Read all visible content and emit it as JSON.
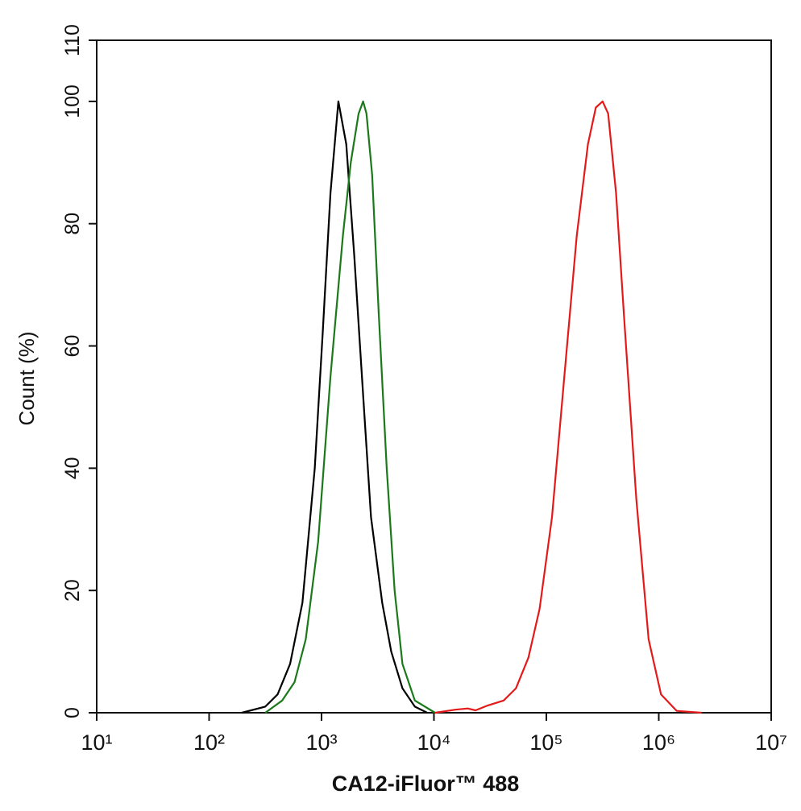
{
  "chart_data": {
    "type": "line",
    "x_label": "CA12-iFluor™ 488",
    "y_label": "Count  (%)",
    "xscale": "log",
    "xlim": [
      10,
      10000000
    ],
    "xticks": [
      {
        "value": 10,
        "label": "10¹"
      },
      {
        "value": 100,
        "label": "10²"
      },
      {
        "value": 1000,
        "label": "10³"
      },
      {
        "value": 10000,
        "label": "10⁴"
      },
      {
        "value": 100000,
        "label": "10⁵"
      },
      {
        "value": 1000000,
        "label": "10⁶"
      },
      {
        "value": 10000000,
        "label": "10⁷"
      }
    ],
    "ylim": [
      0,
      110
    ],
    "yticks": [
      0,
      20,
      40,
      60,
      80,
      100,
      110
    ],
    "series": [
      {
        "color": "#000000",
        "x": [
          195,
          316,
          407,
          525,
          676,
          871,
          1023,
          1202,
          1413,
          1660,
          1950,
          2344,
          2754,
          3467,
          4169,
          5248,
          6761,
          8710
        ],
        "values": [
          0,
          1,
          3,
          8,
          18,
          40,
          62,
          85,
          100,
          93,
          75,
          52,
          32,
          18,
          10,
          4,
          1,
          0
        ]
      },
      {
        "color": "#1a7a1a",
        "x": [
          316,
          447,
          575,
          724,
          933,
          1202,
          1549,
          1820,
          2138,
          2344,
          2512,
          2818,
          3236,
          3802,
          4467,
          5248,
          6761,
          10233
        ],
        "values": [
          0,
          2,
          5,
          12,
          28,
          55,
          78,
          90,
          98,
          100,
          98,
          88,
          65,
          40,
          20,
          8,
          2,
          0
        ]
      },
      {
        "color": "#e41a1a",
        "x": [
          10233,
          15488,
          19953,
          23442,
          30200,
          41687,
          53703,
          69183,
          87096,
          112202,
          144544,
          186209,
          234423,
          275423,
          316228,
          354813,
          416869,
          489779,
          630957,
          812831,
          1047129,
          1445440,
          2398833
        ],
        "values": [
          0,
          0.5,
          0.7,
          0.4,
          1.2,
          2,
          4,
          9,
          17,
          32,
          55,
          78,
          93,
          99,
          100,
          98,
          85,
          65,
          35,
          12,
          3,
          0.3,
          0
        ]
      }
    ]
  }
}
